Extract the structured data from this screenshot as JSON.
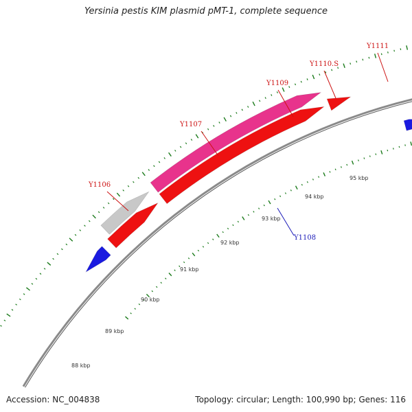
{
  "title": "Yersinia pestis KIM plasmid pMT-1, complete sequence",
  "accession": "Accession: NC_004838",
  "summary": "Topology: circular; Length: 100,990 bp; Genes: 116",
  "colors": {
    "backbone": "#8a8a8a",
    "pink_gene": "#e8338c",
    "red_gene": "#ee1111",
    "blue_gene": "#1a1ae0",
    "grey_gene": "#c8c8c8",
    "tick": "#1a7a1a",
    "label_red": "#cc1111",
    "label_blue": "#1a1ab8"
  },
  "kbp_labels": [
    "88 kbp",
    "89 kbp",
    "90 kbp",
    "91 kbp",
    "92 kbp",
    "93 kbp",
    "94 kbp",
    "95 kbp"
  ],
  "gene_labels": [
    {
      "name": "Y1106",
      "color": "red"
    },
    {
      "name": "Y1107",
      "color": "red"
    },
    {
      "name": "Y1109",
      "color": "red"
    },
    {
      "name": "Y1110.S",
      "color": "red"
    },
    {
      "name": "Y1111",
      "color": "red"
    },
    {
      "name": "Y1108",
      "color": "blue"
    }
  ]
}
